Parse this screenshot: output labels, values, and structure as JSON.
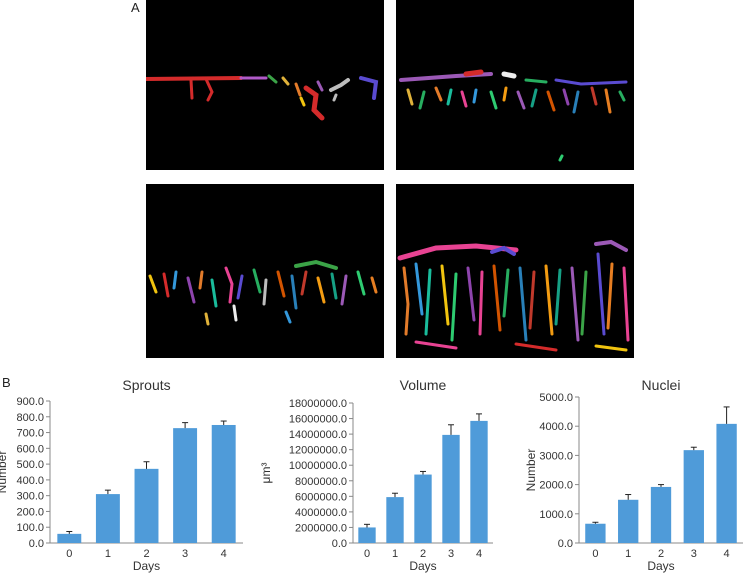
{
  "figure": {
    "panel_a_label": "A",
    "panel_b_label": "B"
  },
  "chart_data": [
    {
      "type": "bar",
      "title": "Sprouts",
      "xlabel": "Days",
      "ylabel": "Number",
      "categories": [
        "0",
        "1",
        "2",
        "3",
        "4"
      ],
      "values": [
        58,
        310,
        470,
        728,
        748
      ],
      "errors": [
        15,
        25,
        45,
        35,
        25
      ],
      "ylim": [
        0,
        900
      ],
      "yticks": [
        "0.0",
        "100.0",
        "200.0",
        "300.0",
        "400.0",
        "500.0",
        "600.0",
        "700.0",
        "800.0",
        "900.0"
      ],
      "bar_color": "#4f9bd9",
      "grid": false
    },
    {
      "type": "bar",
      "title": "Volume",
      "xlabel": "Days",
      "ylabel": "μm³",
      "categories": [
        "0",
        "1",
        "2",
        "3",
        "4"
      ],
      "values": [
        2000000,
        5900000,
        8800000,
        13900000,
        15700000
      ],
      "errors": [
        400000,
        500000,
        400000,
        1300000,
        900000
      ],
      "ylim": [
        0,
        18000000
      ],
      "yticks": [
        "0.0",
        "2000000.0",
        "4000000.0",
        "6000000.0",
        "8000000.0",
        "10000000.0",
        "12000000.0",
        "14000000.0",
        "16000000.0",
        "18000000.0"
      ],
      "bar_color": "#4f9bd9",
      "grid": false
    },
    {
      "type": "bar",
      "title": "Nuclei",
      "xlabel": "Days",
      "ylabel": "Number",
      "categories": [
        "0",
        "1",
        "2",
        "3",
        "4"
      ],
      "values": [
        660,
        1480,
        1920,
        3180,
        4080
      ],
      "errors": [
        50,
        180,
        80,
        100,
        580
      ],
      "ylim": [
        0,
        5000
      ],
      "yticks": [
        "0.0",
        "1000.0",
        "2000.0",
        "3000.0",
        "4000.0",
        "5000.0"
      ],
      "bar_color": "#4f9bd9",
      "grid": false
    }
  ]
}
